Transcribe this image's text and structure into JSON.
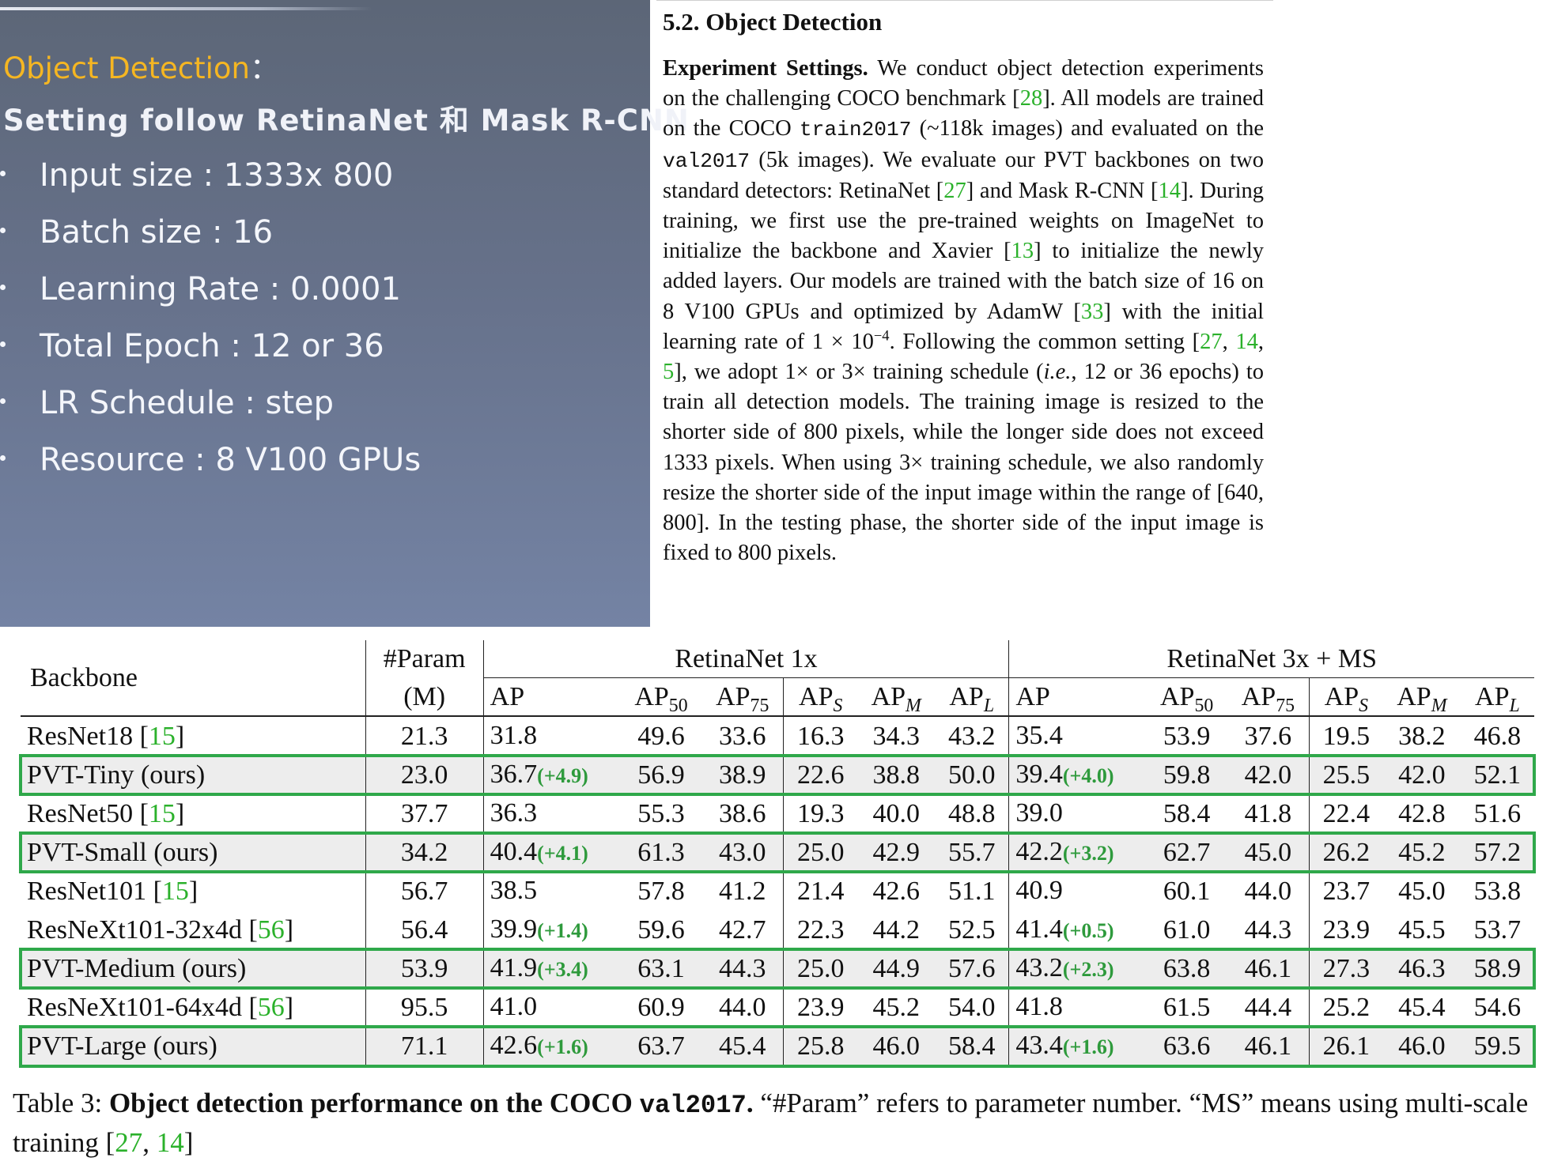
{
  "slide": {
    "heading": "Object Detection",
    "heading_colon": "：",
    "subheading": "Setting follow RetinaNet 和 Mask R-CNN",
    "bullets": [
      "Input size : 1333x 800",
      "Batch size : 16",
      "Learning Rate : 0.0001",
      "Total Epoch : 12 or 36",
      "LR Schedule : step",
      "Resource : 8 V100 GPUs"
    ]
  },
  "paper": {
    "section_title": "5.2. Object Detection",
    "lead": "Experiment Settings.",
    "t1": " We conduct object detection experiments on the challenging COCO benchmark [",
    "r28": "28",
    "t2": "]. All models are trained on the COCO ",
    "train": "train2017",
    "t3": " (~118k images) and evaluated on the ",
    "val": "val2017",
    "t4": " (5k images). We evaluate our PVT backbones on two standard detectors: RetinaNet [",
    "r27": "27",
    "t5": "] and Mask R-CNN [",
    "r14": "14",
    "t6": "]. During training, we first use the pre-trained weights on ImageNet to initialize the backbone and Xavier [",
    "r13": "13",
    "t7": "] to initialize the newly added layers. Our models are trained with the batch size of 16 on 8 V100 GPUs and optimized by AdamW [",
    "r33": "33",
    "t8": "] with the initial learning rate of 1 × 10",
    "exp": "−4",
    "t9": ". Following the common setting [",
    "r27b": "27",
    "sep1": ", ",
    "r14b": "14",
    "sep2": ", ",
    "r5": "5",
    "t10": "], we adopt 1× or 3× training schedule (",
    "ie": "i.e.",
    "t11": ", 12 or 36 epochs) to train all detection models. The training image is resized to the shorter side of 800 pixels, while the longer side does not exceed 1333 pixels. When using 3× training schedule, we also randomly resize the shorter side of the input image within the range of [640, 800]. In the testing phase, the shorter side of the input image is fixed to 800 pixels."
  },
  "table": {
    "col_backbone": "Backbone",
    "col_param_top": "#Param",
    "col_param_bottom": "(M)",
    "group1": "RetinaNet 1x",
    "group2": "RetinaNet 3x + MS",
    "sub": {
      "ap": "AP",
      "ap50": "50",
      "ap75": "75",
      "aps": "S",
      "apm": "M",
      "apl": "L"
    },
    "rows": [
      {
        "backbone": "ResNet18 [",
        "ref": "15",
        "close": "]",
        "param": "21.3",
        "ap1": "31.8",
        "g1": "",
        "a50": "49.6",
        "a75": "33.6",
        "s": "16.3",
        "m": "34.3",
        "l": "43.2",
        "ap2": "35.4",
        "g2": "",
        "b50": "53.9",
        "b75": "37.6",
        "s2": "19.5",
        "m2": "38.2",
        "l2": "46.8"
      },
      {
        "backbone": "PVT-Tiny (ours)",
        "ref": "",
        "close": "",
        "param": "23.0",
        "ap1": "36.7",
        "g1": "(+4.9)",
        "a50": "56.9",
        "a75": "38.9",
        "s": "22.6",
        "m": "38.8",
        "l": "50.0",
        "ap2": "39.4",
        "g2": "(+4.0)",
        "b50": "59.8",
        "b75": "42.0",
        "s2": "25.5",
        "m2": "42.0",
        "l2": "52.1"
      },
      {
        "backbone": "ResNet50 [",
        "ref": "15",
        "close": "]",
        "param": "37.7",
        "ap1": "36.3",
        "g1": "",
        "a50": "55.3",
        "a75": "38.6",
        "s": "19.3",
        "m": "40.0",
        "l": "48.8",
        "ap2": "39.0",
        "g2": "",
        "b50": "58.4",
        "b75": "41.8",
        "s2": "22.4",
        "m2": "42.8",
        "l2": "51.6"
      },
      {
        "backbone": "PVT-Small (ours)",
        "ref": "",
        "close": "",
        "param": "34.2",
        "ap1": "40.4",
        "g1": "(+4.1)",
        "a50": "61.3",
        "a75": "43.0",
        "s": "25.0",
        "m": "42.9",
        "l": "55.7",
        "ap2": "42.2",
        "g2": "(+3.2)",
        "b50": "62.7",
        "b75": "45.0",
        "s2": "26.2",
        "m2": "45.2",
        "l2": "57.2"
      },
      {
        "backbone": "ResNet101 [",
        "ref": "15",
        "close": "]",
        "param": "56.7",
        "ap1": "38.5",
        "g1": "",
        "a50": "57.8",
        "a75": "41.2",
        "s": "21.4",
        "m": "42.6",
        "l": "51.1",
        "ap2": "40.9",
        "g2": "",
        "b50": "60.1",
        "b75": "44.0",
        "s2": "23.7",
        "m2": "45.0",
        "l2": "53.8"
      },
      {
        "backbone": "ResNeXt101-32x4d [",
        "ref": "56",
        "close": "]",
        "param": "56.4",
        "ap1": "39.9",
        "g1": "(+1.4)",
        "a50": "59.6",
        "a75": "42.7",
        "s": "22.3",
        "m": "44.2",
        "l": "52.5",
        "ap2": "41.4",
        "g2": "(+0.5)",
        "b50": "61.0",
        "b75": "44.3",
        "s2": "23.9",
        "m2": "45.5",
        "l2": "53.7"
      },
      {
        "backbone": "PVT-Medium (ours)",
        "ref": "",
        "close": "",
        "param": "53.9",
        "ap1": "41.9",
        "g1": "(+3.4)",
        "a50": "63.1",
        "a75": "44.3",
        "s": "25.0",
        "m": "44.9",
        "l": "57.6",
        "ap2": "43.2",
        "g2": "(+2.3)",
        "b50": "63.8",
        "b75": "46.1",
        "s2": "27.3",
        "m2": "46.3",
        "l2": "58.9"
      },
      {
        "backbone": "ResNeXt101-64x4d [",
        "ref": "56",
        "close": "]",
        "param": "95.5",
        "ap1": "41.0",
        "g1": "",
        "a50": "60.9",
        "a75": "44.0",
        "s": "23.9",
        "m": "45.2",
        "l": "54.0",
        "ap2": "41.8",
        "g2": "",
        "b50": "61.5",
        "b75": "44.4",
        "s2": "25.2",
        "m2": "45.4",
        "l2": "54.6"
      },
      {
        "backbone": "PVT-Large (ours)",
        "ref": "",
        "close": "",
        "param": "71.1",
        "ap1": "42.6",
        "g1": "(+1.6)",
        "a50": "63.7",
        "a75": "45.4",
        "s": "25.8",
        "m": "46.0",
        "l": "58.4",
        "ap2": "43.4",
        "g2": "(+1.6)",
        "b50": "63.6",
        "b75": "46.1",
        "s2": "26.1",
        "m2": "46.0",
        "l2": "59.5"
      }
    ]
  },
  "caption": {
    "prefix": "Table 3: ",
    "bold": "Object detection performance on the COCO ",
    "bold_mono": "val2017",
    "bold_end": ".",
    "rest": " “#Param” refers to parameter number. “MS” means using multi-scale training [",
    "r27": "27",
    "sep": ", ",
    "r14": "14",
    "close": "]"
  },
  "colors": {
    "accent_orange": "#f5b622",
    "ref_green": "#2bb12b",
    "highlight_green": "#2fa84a"
  }
}
